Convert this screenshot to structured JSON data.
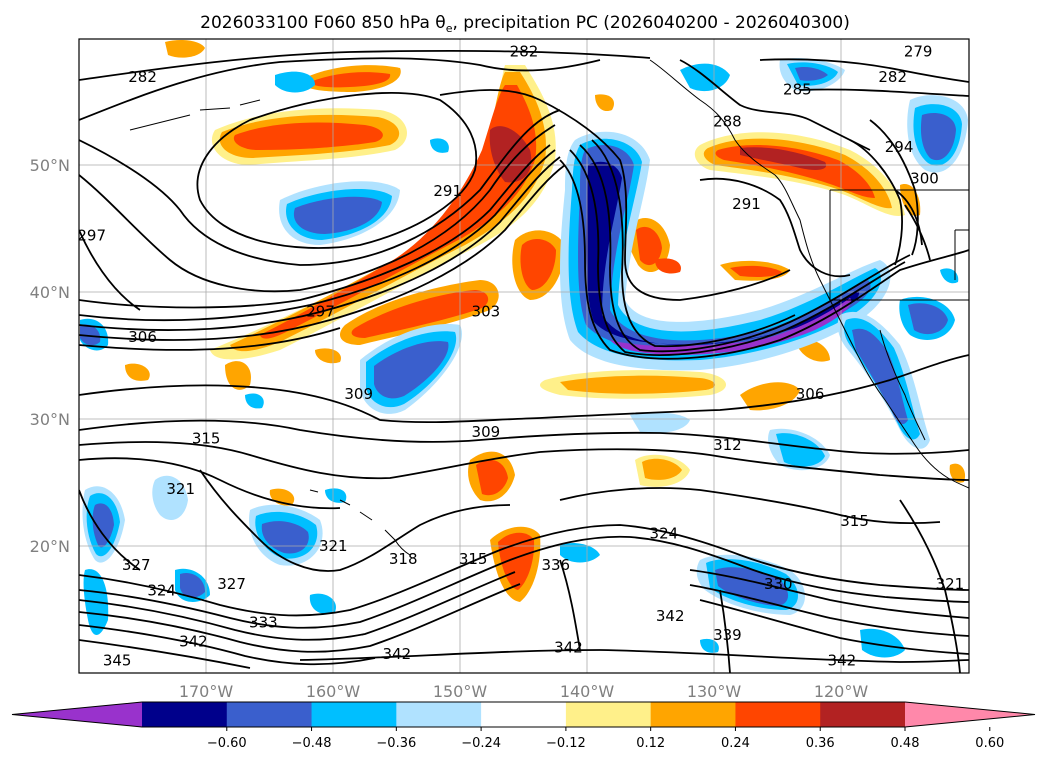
{
  "title": {
    "main": "2026033100 F060 850 hPa θ",
    "subscript": "e",
    "rest": ", precipitation PC (2026040200 - 2026040300)"
  },
  "map": {
    "lon_range": [
      -180,
      -110
    ],
    "lat_range": [
      10,
      60
    ],
    "lon_ticks": [
      "170°W",
      "160°W",
      "150°W",
      "140°W",
      "130°W",
      "120°W"
    ],
    "lat_ticks": [
      "50°N",
      "40°N",
      "30°N",
      "20°N"
    ],
    "grid": true,
    "contour_labels": [
      {
        "text": "282",
        "lon": -175,
        "lat": 57
      },
      {
        "text": "282",
        "lon": -145,
        "lat": 59
      },
      {
        "text": "279",
        "lon": -114,
        "lat": 59
      },
      {
        "text": "282",
        "lon": -116,
        "lat": 57
      },
      {
        "text": "285",
        "lon": -123.5,
        "lat": 56
      },
      {
        "text": "288",
        "lon": -129,
        "lat": 53.5
      },
      {
        "text": "294",
        "lon": -115.5,
        "lat": 51.5
      },
      {
        "text": "300",
        "lon": -113.5,
        "lat": 49
      },
      {
        "text": "291",
        "lon": -151,
        "lat": 48
      },
      {
        "text": "291",
        "lon": -127.5,
        "lat": 47
      },
      {
        "text": "297",
        "lon": -179,
        "lat": 44.5
      },
      {
        "text": "297",
        "lon": -161,
        "lat": 38.5
      },
      {
        "text": "303",
        "lon": -148,
        "lat": 38.5
      },
      {
        "text": "306",
        "lon": -175,
        "lat": 36.5
      },
      {
        "text": "309",
        "lon": -158,
        "lat": 32
      },
      {
        "text": "306",
        "lon": -122.5,
        "lat": 32
      },
      {
        "text": "309",
        "lon": -148,
        "lat": 29
      },
      {
        "text": "312",
        "lon": -129,
        "lat": 28
      },
      {
        "text": "315",
        "lon": -170,
        "lat": 28.5
      },
      {
        "text": "321",
        "lon": -172,
        "lat": 24.5
      },
      {
        "text": "321",
        "lon": -160,
        "lat": 20
      },
      {
        "text": "318",
        "lon": -154.5,
        "lat": 19
      },
      {
        "text": "315",
        "lon": -149,
        "lat": 19
      },
      {
        "text": "336",
        "lon": -142.5,
        "lat": 18.5
      },
      {
        "text": "324",
        "lon": -134,
        "lat": 21
      },
      {
        "text": "315",
        "lon": -119,
        "lat": 22
      },
      {
        "text": "330",
        "lon": -125,
        "lat": 17
      },
      {
        "text": "321",
        "lon": -111.5,
        "lat": 17
      },
      {
        "text": "327",
        "lon": -175.5,
        "lat": 18.5
      },
      {
        "text": "324",
        "lon": -173.5,
        "lat": 16.5
      },
      {
        "text": "327",
        "lon": -168,
        "lat": 17
      },
      {
        "text": "333",
        "lon": -165.5,
        "lat": 14
      },
      {
        "text": "342",
        "lon": -171,
        "lat": 12.5
      },
      {
        "text": "345",
        "lon": -177,
        "lat": 11
      },
      {
        "text": "342",
        "lon": -155,
        "lat": 11.5
      },
      {
        "text": "342",
        "lon": -141.5,
        "lat": 12
      },
      {
        "text": "342",
        "lon": -133.5,
        "lat": 14.5
      },
      {
        "text": "339",
        "lon": -129,
        "lat": 13
      },
      {
        "text": "342",
        "lon": -120,
        "lat": 11
      }
    ]
  },
  "colorbar": {
    "extend": "both",
    "ticks": [
      "−0.60",
      "−0.48",
      "−0.36",
      "−0.24",
      "−0.12",
      "0.12",
      "0.24",
      "0.36",
      "0.48",
      "0.60"
    ],
    "colors": [
      "#9932cc",
      "#00008b",
      "#3a5fcd",
      "#00bfff",
      "#b0e2ff",
      "#ffffff",
      "#fff08a",
      "#ffa500",
      "#ff4500",
      "#b22222",
      "#ff88aa"
    ]
  }
}
